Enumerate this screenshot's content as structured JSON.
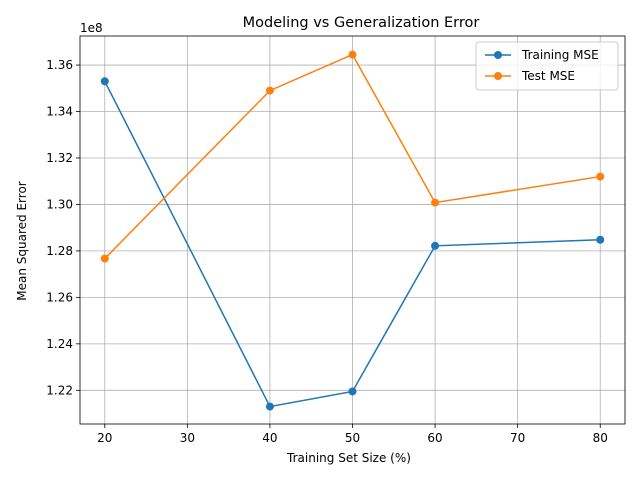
{
  "chart_data": {
    "type": "line",
    "title": "Modeling vs Generalization Error",
    "xlabel": "Training Set Size (%)",
    "ylabel": "Mean Squared Error",
    "y_offset_label": "1e8",
    "xlim": [
      17,
      83
    ],
    "ylim": [
      1.2055,
      1.3725
    ],
    "x_ticks": [
      20,
      30,
      40,
      50,
      60,
      70,
      80
    ],
    "y_ticks": [
      1.22,
      1.24,
      1.26,
      1.28,
      1.3,
      1.32,
      1.34,
      1.36
    ],
    "y_tick_labels": [
      "1.22",
      "1.24",
      "1.26",
      "1.28",
      "1.30",
      "1.32",
      "1.34",
      "1.36"
    ],
    "grid": true,
    "legend_position": "top-right",
    "x": [
      20,
      40,
      50,
      60,
      80
    ],
    "series": [
      {
        "name": "Training MSE",
        "color": "#1f77b4",
        "values": [
          1.353,
          1.213,
          1.2195,
          1.2822,
          1.2848
        ]
      },
      {
        "name": "Test MSE",
        "color": "#ff7f0e",
        "values": [
          1.2767,
          1.349,
          1.3645,
          1.3008,
          1.312
        ]
      }
    ]
  }
}
